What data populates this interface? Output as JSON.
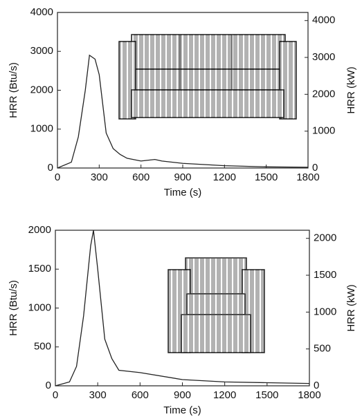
{
  "chart_data": [
    {
      "type": "line",
      "x_label": "Time (s)",
      "y_label": "HRR (Btu/s)",
      "y2_label": "HRR (kW)",
      "x": [
        0,
        100,
        150,
        200,
        230,
        270,
        300,
        350,
        400,
        450,
        500,
        600,
        700,
        750,
        900,
        1200,
        1500,
        1800
      ],
      "values": [
        0,
        150,
        800,
        2000,
        2900,
        2800,
        2400,
        900,
        500,
        350,
        250,
        180,
        220,
        180,
        120,
        60,
        30,
        20
      ],
      "color": "#222222",
      "xlim": [
        0,
        1800
      ],
      "xticks": [
        0,
        300,
        600,
        900,
        1200,
        1500,
        1800
      ],
      "ylim": [
        0,
        4000
      ],
      "yticks": [
        0,
        1000,
        2000,
        3000,
        4000
      ],
      "y2lim": [
        0,
        4220
      ],
      "y2ticks": [
        0,
        1000,
        2000,
        3000,
        4000
      ]
    },
    {
      "type": "line",
      "x_label": "Time (s)",
      "y_label": "HRR (Btu/s)",
      "y2_label": "HRR (kW)",
      "x": [
        0,
        100,
        150,
        200,
        250,
        270,
        300,
        350,
        400,
        450,
        600,
        900,
        1200,
        1500,
        1800
      ],
      "values": [
        0,
        50,
        250,
        900,
        1800,
        2000,
        1500,
        600,
        350,
        200,
        170,
        80,
        50,
        40,
        30
      ],
      "color": "#222222",
      "xlim": [
        0,
        1800
      ],
      "xticks": [
        0,
        300,
        600,
        900,
        1200,
        1500,
        1800
      ],
      "ylim": [
        0,
        2000
      ],
      "yticks": [
        0,
        500,
        1000,
        1500,
        2000
      ],
      "y2lim": [
        0,
        2110
      ],
      "y2ticks": [
        0,
        500,
        1000,
        1500,
        2000
      ]
    }
  ]
}
